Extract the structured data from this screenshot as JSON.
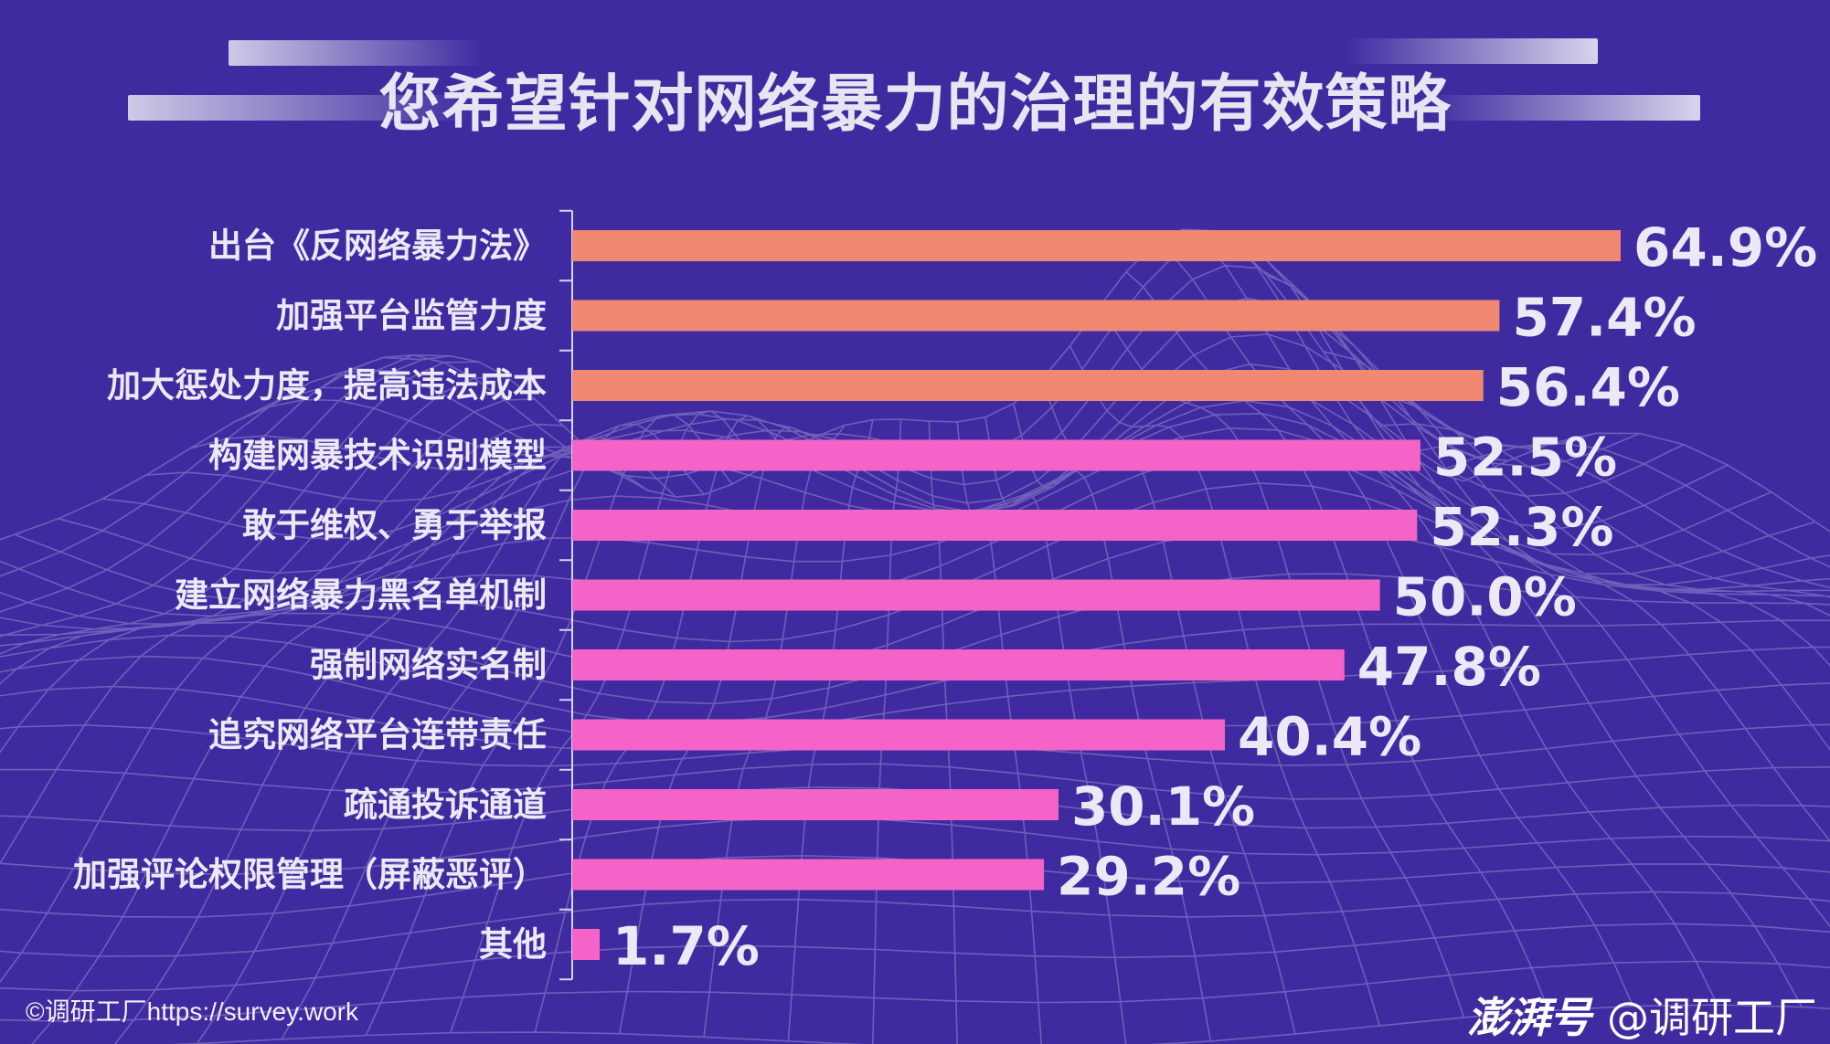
{
  "colors": {
    "background": "#3f2aa0",
    "bar_top": "#f08872",
    "bar_rest": "#f464c8",
    "text": "#ece8f5"
  },
  "chart_data": {
    "type": "bar",
    "orientation": "horizontal",
    "title": "您希望针对网络暴力的治理的有效策略",
    "categories": [
      "出台《反网络暴力法》",
      "加强平台监管力度",
      "加大惩处力度，提高违法成本",
      "构建网暴技术识别模型",
      "敢于维权、勇于举报",
      "建立网络暴力黑名单机制",
      "强制网络实名制",
      "追究网络平台连带责任",
      "疏通投诉通道",
      "加强评论权限管理（屏蔽恶评）",
      "其他"
    ],
    "values": [
      64.9,
      57.4,
      56.4,
      52.5,
      52.3,
      50.0,
      47.8,
      40.4,
      30.1,
      29.2,
      1.7
    ],
    "value_labels": [
      "64.9%",
      "57.4%",
      "56.4%",
      "52.5%",
      "52.3%",
      "50.0%",
      "47.8%",
      "40.4%",
      "30.1%",
      "29.2%",
      "1.7%"
    ],
    "highlight_top_n": 3,
    "unit": "%",
    "grid": false,
    "legend": "none"
  },
  "footer": {
    "copyright": "©调研工厂https://survey.work",
    "brand_logo": "澎湃号",
    "brand_account": "@调研工厂"
  }
}
